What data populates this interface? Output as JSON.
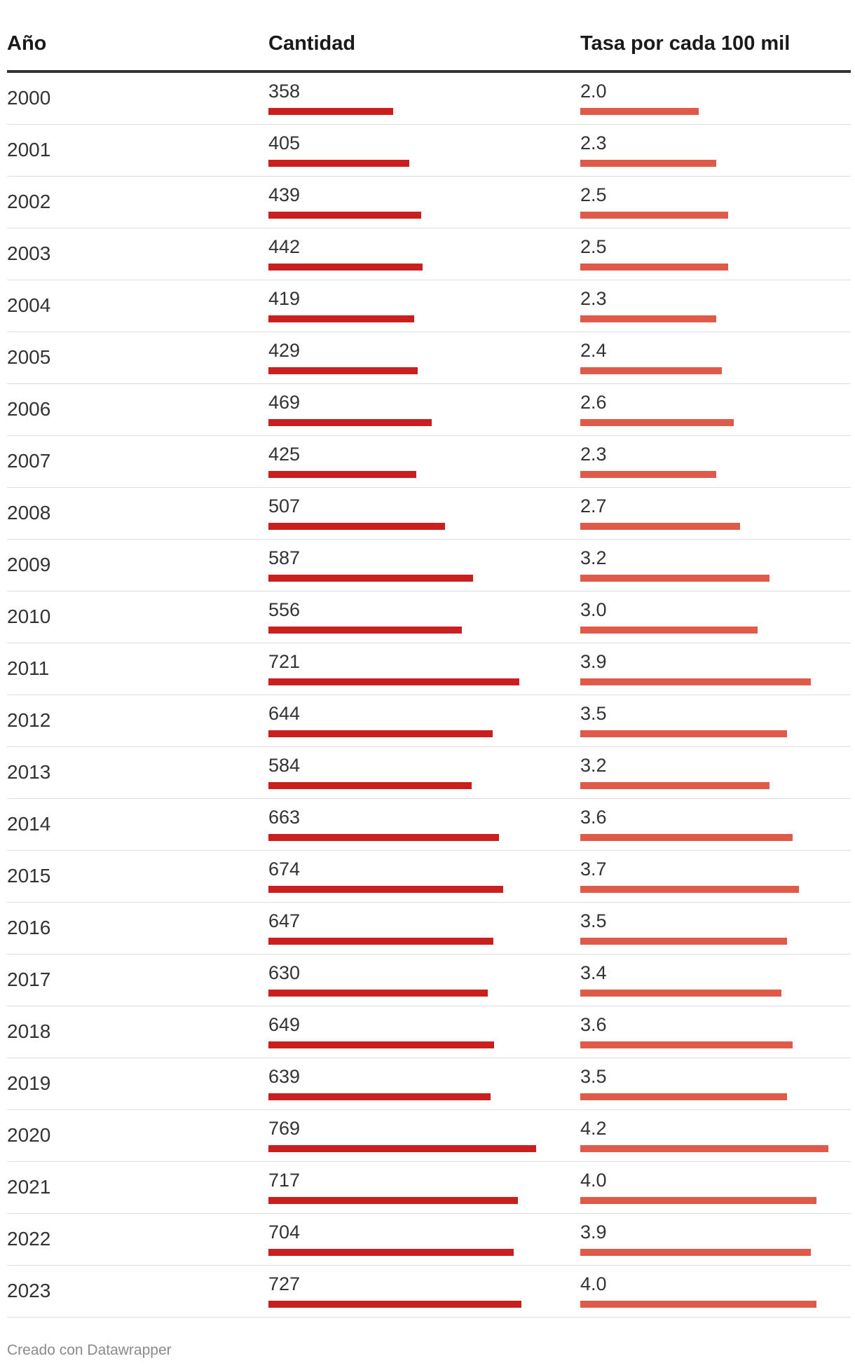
{
  "chart_data": {
    "type": "table",
    "columns": [
      "Año",
      "Cantidad",
      "Tasa por cada 100 mil"
    ],
    "colors": {
      "cantidad_bar": "#c9201f",
      "tasa_bar": "#e05a4a"
    },
    "rows": [
      {
        "year": "2000",
        "cantidad": "358",
        "tasa": "2.0"
      },
      {
        "year": "2001",
        "cantidad": "405",
        "tasa": "2.3"
      },
      {
        "year": "2002",
        "cantidad": "439",
        "tasa": "2.5"
      },
      {
        "year": "2003",
        "cantidad": "442",
        "tasa": "2.5"
      },
      {
        "year": "2004",
        "cantidad": "419",
        "tasa": "2.3"
      },
      {
        "year": "2005",
        "cantidad": "429",
        "tasa": "2.4"
      },
      {
        "year": "2006",
        "cantidad": "469",
        "tasa": "2.6"
      },
      {
        "year": "2007",
        "cantidad": "425",
        "tasa": "2.3"
      },
      {
        "year": "2008",
        "cantidad": "507",
        "tasa": "2.7"
      },
      {
        "year": "2009",
        "cantidad": "587",
        "tasa": "3.2"
      },
      {
        "year": "2010",
        "cantidad": "556",
        "tasa": "3.0"
      },
      {
        "year": "2011",
        "cantidad": "721",
        "tasa": "3.9"
      },
      {
        "year": "2012",
        "cantidad": "644",
        "tasa": "3.5"
      },
      {
        "year": "2013",
        "cantidad": "584",
        "tasa": "3.2"
      },
      {
        "year": "2014",
        "cantidad": "663",
        "tasa": "3.6"
      },
      {
        "year": "2015",
        "cantidad": "674",
        "tasa": "3.7"
      },
      {
        "year": "2016",
        "cantidad": "647",
        "tasa": "3.5"
      },
      {
        "year": "2017",
        "cantidad": "630",
        "tasa": "3.4"
      },
      {
        "year": "2018",
        "cantidad": "649",
        "tasa": "3.6"
      },
      {
        "year": "2019",
        "cantidad": "639",
        "tasa": "3.5"
      },
      {
        "year": "2020",
        "cantidad": "769",
        "tasa": "4.2"
      },
      {
        "year": "2021",
        "cantidad": "717",
        "tasa": "4.0"
      },
      {
        "year": "2022",
        "cantidad": "704",
        "tasa": "3.9"
      },
      {
        "year": "2023",
        "cantidad": "727",
        "tasa": "4.0"
      }
    ]
  },
  "footer": {
    "credit": "Creado con Datawrapper"
  }
}
